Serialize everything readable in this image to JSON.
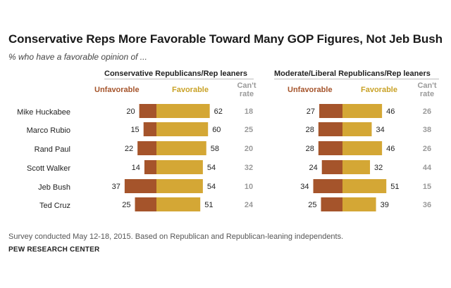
{
  "title": "Conservative Reps More Favorable Toward Many GOP Figures, Not Jeb Bush",
  "subtitle": "% who have a favorable opinion of ...",
  "column_headers": {
    "unfavorable": "Unfavorable",
    "favorable": "Favorable",
    "cant_rate_line1": "Can't",
    "cant_rate_line2": "rate"
  },
  "colors": {
    "unfavorable": "#a5542b",
    "favorable": "#d4a735",
    "cant_rate": "#9a9a9a"
  },
  "note": "Survey conducted May 12-18, 2015. Based on Republican and Republican-leaning independents.",
  "source": "PEW RESEARCH CENTER",
  "chart_data": [
    {
      "type": "bar",
      "title": "Conservative Republicans/Rep leaners",
      "categories": [
        "Mike Huckabee",
        "Marco Rubio",
        "Rand Paul",
        "Scott Walker",
        "Jeb Bush",
        "Ted Cruz"
      ],
      "series": [
        {
          "name": "Unfavorable",
          "values": [
            20,
            15,
            22,
            14,
            37,
            25
          ]
        },
        {
          "name": "Favorable",
          "values": [
            62,
            60,
            58,
            54,
            54,
            51
          ]
        },
        {
          "name": "Can't rate",
          "values": [
            18,
            25,
            20,
            32,
            10,
            24
          ]
        }
      ]
    },
    {
      "type": "bar",
      "title": "Moderate/Liberal Republicans/Rep leaners",
      "categories": [
        "Mike Huckabee",
        "Marco Rubio",
        "Rand Paul",
        "Scott Walker",
        "Jeb Bush",
        "Ted Cruz"
      ],
      "series": [
        {
          "name": "Unfavorable",
          "values": [
            27,
            28,
            28,
            24,
            34,
            25
          ]
        },
        {
          "name": "Favorable",
          "values": [
            46,
            34,
            46,
            32,
            51,
            39
          ]
        },
        {
          "name": "Can't rate",
          "values": [
            26,
            38,
            26,
            44,
            15,
            36
          ]
        }
      ]
    }
  ]
}
